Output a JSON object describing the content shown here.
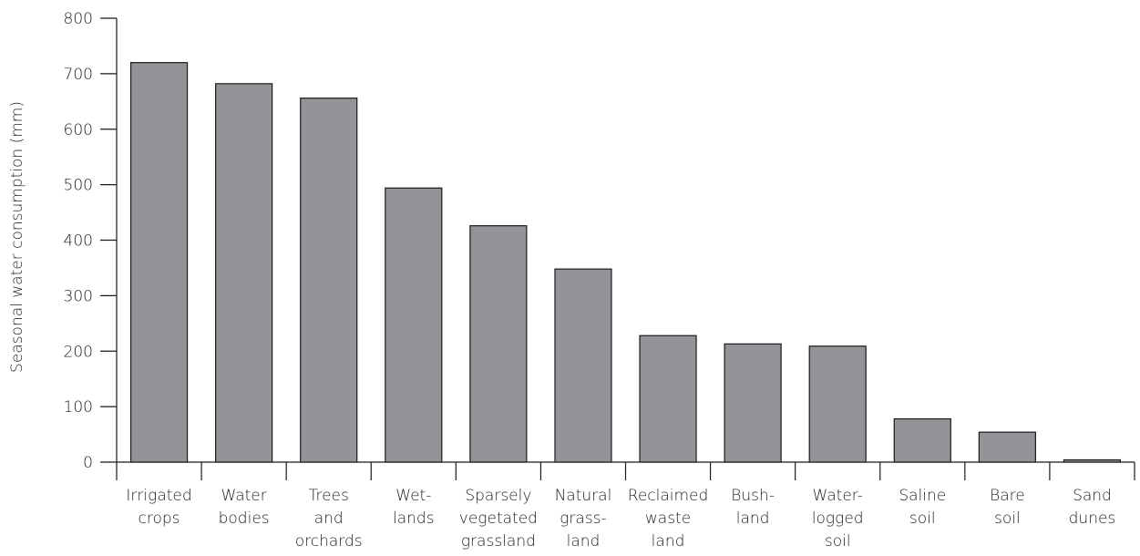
{
  "chart_data": {
    "type": "bar",
    "title": "",
    "xlabel": "",
    "ylabel": "Seasonal water consumption (mm)",
    "ylim": [
      0,
      800
    ],
    "yticks": [
      0,
      100,
      200,
      300,
      400,
      500,
      600,
      700,
      800
    ],
    "grid": false,
    "bar_color": "#939398",
    "categories": [
      [
        "Irrigated",
        "crops"
      ],
      [
        "Water",
        "bodies"
      ],
      [
        "Trees",
        "and",
        "orchards"
      ],
      [
        "Wet-",
        "lands"
      ],
      [
        "Sparsely",
        "vegetated",
        "grassland"
      ],
      [
        "Natural",
        "grass-",
        "land"
      ],
      [
        "Reclaimed",
        "waste",
        "land"
      ],
      [
        "Bush-",
        "land"
      ],
      [
        "Water-",
        "logged",
        "soil"
      ],
      [
        "Saline",
        "soil"
      ],
      [
        "Bare",
        "soil"
      ],
      [
        "Sand",
        "dunes"
      ]
    ],
    "values": [
      720,
      682,
      656,
      494,
      426,
      348,
      228,
      213,
      209,
      78,
      54,
      4
    ]
  }
}
